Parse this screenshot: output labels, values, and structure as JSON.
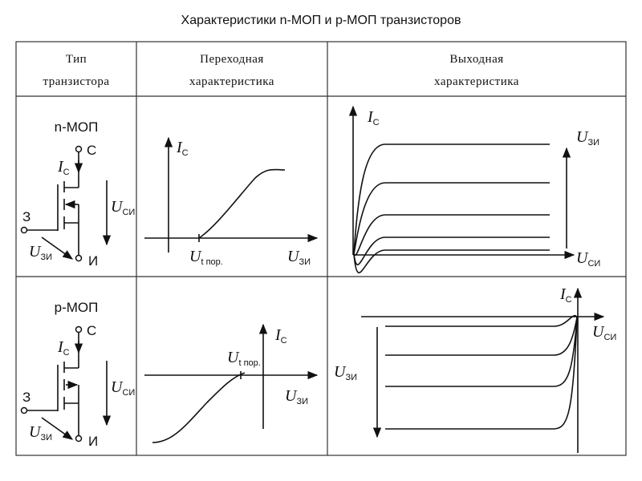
{
  "title": "Характеристики n-МОП и p-МОП транзисторов",
  "table": {
    "headers": [
      [
        "Тип",
        "транзистора"
      ],
      [
        "Переходная",
        "характеристика"
      ],
      [
        "Выходная",
        "характеристика"
      ]
    ],
    "rows": [
      {
        "type": "n-МОП",
        "drain": "С",
        "gate": "З",
        "source": "И",
        "ic": {
          "main": "I",
          "sub": "С"
        },
        "uds": {
          "main": "U",
          "sub": "СИ"
        },
        "ugs": {
          "main": "U",
          "sub": "ЗИ"
        },
        "uth": {
          "main": "U",
          "sub": "t пор."
        }
      },
      {
        "type": "p-МОП",
        "drain": "С",
        "gate": "З",
        "source": "И",
        "ic": {
          "main": "I",
          "sub": "С"
        },
        "uds": {
          "main": "U",
          "sub": "СИ"
        },
        "ugs": {
          "main": "U",
          "sub": "ЗИ"
        },
        "uth": {
          "main": "U",
          "sub": "t пор."
        }
      }
    ]
  }
}
